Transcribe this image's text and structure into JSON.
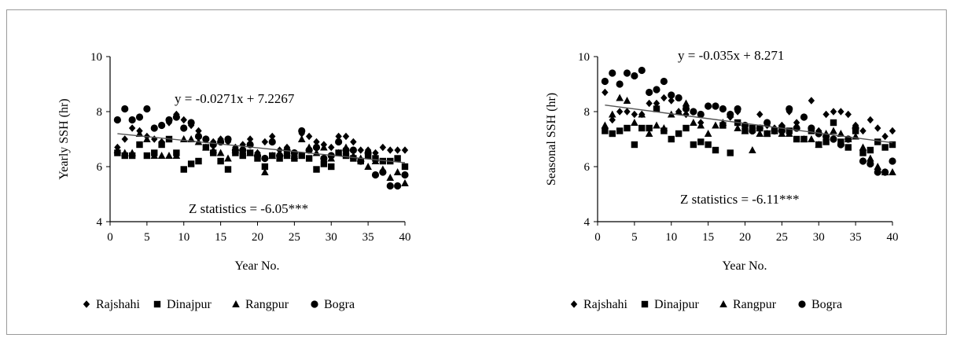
{
  "chart_data": [
    {
      "type": "scatter",
      "xlabel": "Year No.",
      "ylabel": "Yearly SSH (hr)",
      "xlim": [
        0,
        40
      ],
      "ylim": [
        4,
        10
      ],
      "xticks": [
        "0",
        "5",
        "10",
        "15",
        "20",
        "25",
        "30",
        "35",
        "40"
      ],
      "yticks": [
        "4",
        "6",
        "8",
        "10"
      ],
      "equation": "y = -0.0271x + 7.2267",
      "statistic": "Z statistics = -6.05***",
      "trend": {
        "slope": -0.0271,
        "intercept": 7.2267,
        "x_range": [
          1,
          40
        ]
      },
      "legend_position": "bottom",
      "grid": false,
      "series": [
        {
          "name": "Rajshahi",
          "marker": "diamond",
          "x": [
            1,
            2,
            3,
            4,
            5,
            6,
            7,
            8,
            9,
            10,
            11,
            12,
            13,
            14,
            15,
            16,
            17,
            18,
            19,
            20,
            21,
            22,
            23,
            24,
            25,
            26,
            27,
            28,
            29,
            30,
            31,
            32,
            33,
            34,
            35,
            36,
            37,
            38,
            39,
            40
          ],
          "y": [
            6.7,
            7.0,
            7.4,
            7.3,
            7.1,
            7.0,
            6.9,
            7.6,
            7.9,
            7.7,
            7.5,
            7.3,
            7.0,
            6.9,
            7.0,
            6.9,
            6.7,
            6.8,
            7.0,
            6.5,
            6.9,
            7.1,
            6.6,
            6.7,
            6.5,
            7.2,
            7.1,
            6.9,
            6.8,
            6.7,
            7.1,
            7.1,
            6.9,
            6.6,
            6.6,
            6.5,
            6.7,
            6.6,
            6.6,
            6.6
          ]
        },
        {
          "name": "Dinajpur",
          "marker": "square",
          "x": [
            1,
            2,
            3,
            4,
            5,
            6,
            7,
            8,
            9,
            10,
            11,
            12,
            13,
            14,
            15,
            16,
            17,
            18,
            19,
            20,
            21,
            22,
            23,
            24,
            25,
            26,
            27,
            28,
            29,
            30,
            31,
            32,
            33,
            34,
            35,
            36,
            37,
            38,
            39,
            40
          ],
          "y": [
            6.5,
            6.4,
            6.4,
            6.8,
            6.4,
            6.5,
            6.8,
            7.0,
            6.5,
            5.9,
            6.1,
            6.2,
            6.7,
            6.5,
            6.2,
            5.9,
            6.5,
            6.4,
            6.5,
            6.3,
            6.0,
            6.4,
            6.3,
            6.4,
            6.3,
            6.4,
            6.3,
            5.9,
            6.1,
            6.0,
            6.5,
            6.4,
            6.3,
            6.2,
            6.4,
            6.3,
            6.2,
            6.2,
            6.3,
            6.0
          ]
        },
        {
          "name": "Rangpur",
          "marker": "triangle",
          "x": [
            1,
            2,
            3,
            4,
            5,
            6,
            7,
            8,
            9,
            10,
            11,
            12,
            13,
            14,
            15,
            16,
            17,
            18,
            19,
            20,
            21,
            22,
            23,
            24,
            25,
            26,
            27,
            28,
            29,
            30,
            31,
            32,
            33,
            34,
            35,
            36,
            37,
            38,
            39,
            40
          ],
          "y": [
            6.6,
            6.5,
            6.5,
            7.2,
            7.0,
            6.4,
            6.4,
            6.4,
            6.4,
            7.0,
            7.0,
            6.9,
            6.7,
            6.6,
            6.5,
            6.3,
            6.6,
            6.7,
            6.5,
            6.5,
            5.8,
            6.4,
            6.5,
            6.5,
            6.4,
            7.0,
            6.7,
            6.5,
            6.7,
            6.3,
            6.5,
            6.7,
            6.4,
            6.3,
            6.0,
            6.2,
            5.9,
            5.6,
            5.8,
            5.4
          ]
        },
        {
          "name": "Bogra",
          "marker": "circle",
          "x": [
            1,
            2,
            3,
            4,
            5,
            6,
            7,
            8,
            9,
            10,
            11,
            12,
            13,
            14,
            15,
            16,
            17,
            18,
            19,
            20,
            21,
            22,
            23,
            24,
            25,
            26,
            27,
            28,
            29,
            30,
            31,
            32,
            33,
            34,
            35,
            36,
            37,
            38,
            39,
            40
          ],
          "y": [
            7.7,
            8.1,
            7.7,
            7.8,
            8.1,
            7.4,
            7.5,
            7.7,
            7.8,
            7.4,
            7.6,
            7.1,
            7.0,
            6.8,
            6.9,
            7.0,
            6.6,
            6.6,
            6.8,
            6.4,
            6.3,
            6.9,
            6.4,
            6.6,
            6.5,
            7.3,
            6.6,
            6.7,
            6.3,
            6.4,
            6.9,
            6.6,
            6.6,
            6.2,
            6.5,
            5.7,
            5.8,
            5.3,
            5.3,
            5.7
          ]
        }
      ]
    },
    {
      "type": "scatter",
      "xlabel": "Year No.",
      "ylabel": "Seasonal SSH (hr)",
      "xlim": [
        0,
        40
      ],
      "ylim": [
        4,
        10
      ],
      "xticks": [
        "0",
        "5",
        "10",
        "15",
        "20",
        "25",
        "30",
        "35",
        "40"
      ],
      "yticks": [
        "4",
        "6",
        "8",
        "10"
      ],
      "equation": "y = -0.035x + 8.271",
      "statistic": "Z statistics = -6.11***",
      "trend": {
        "slope": -0.035,
        "intercept": 8.271,
        "x_range": [
          1,
          40
        ]
      },
      "legend_position": "bottom",
      "grid": false,
      "series": [
        {
          "name": "Rajshahi",
          "marker": "diamond",
          "x": [
            1,
            2,
            3,
            4,
            5,
            6,
            7,
            8,
            9,
            10,
            11,
            12,
            13,
            14,
            15,
            16,
            17,
            18,
            19,
            20,
            21,
            22,
            23,
            24,
            25,
            26,
            27,
            28,
            29,
            30,
            31,
            32,
            33,
            34,
            35,
            36,
            37,
            38,
            39,
            40
          ],
          "y": [
            8.7,
            7.7,
            8.0,
            8.0,
            7.9,
            7.9,
            8.3,
            8.3,
            8.5,
            8.4,
            8.0,
            7.9,
            8.0,
            7.6,
            8.2,
            8.2,
            8.1,
            7.8,
            8.0,
            7.5,
            7.3,
            7.9,
            7.5,
            7.4,
            7.5,
            8.0,
            7.6,
            7.8,
            8.4,
            7.3,
            7.9,
            8.0,
            8.0,
            7.9,
            7.5,
            7.3,
            7.7,
            7.4,
            7.1,
            7.3
          ]
        },
        {
          "name": "Dinajpur",
          "marker": "square",
          "x": [
            1,
            2,
            3,
            4,
            5,
            6,
            7,
            8,
            9,
            10,
            11,
            12,
            13,
            14,
            15,
            16,
            17,
            18,
            19,
            20,
            21,
            22,
            23,
            24,
            25,
            26,
            27,
            28,
            29,
            30,
            31,
            32,
            33,
            34,
            35,
            36,
            37,
            38,
            39,
            40
          ],
          "y": [
            7.3,
            7.2,
            7.3,
            7.4,
            6.8,
            7.4,
            7.4,
            8.1,
            7.3,
            7.0,
            7.2,
            7.4,
            6.8,
            6.9,
            6.8,
            6.6,
            7.5,
            6.5,
            7.6,
            7.3,
            7.4,
            7.4,
            7.2,
            7.3,
            7.4,
            7.3,
            7.0,
            7.0,
            7.3,
            6.8,
            6.9,
            7.6,
            6.9,
            6.7,
            7.3,
            6.5,
            6.6,
            6.9,
            6.7,
            6.8
          ]
        },
        {
          "name": "Rangpur",
          "marker": "triangle",
          "x": [
            1,
            2,
            3,
            4,
            5,
            6,
            7,
            8,
            9,
            10,
            11,
            12,
            13,
            14,
            15,
            16,
            17,
            18,
            19,
            20,
            21,
            22,
            23,
            24,
            25,
            26,
            27,
            28,
            29,
            30,
            31,
            32,
            33,
            34,
            35,
            36,
            37,
            38,
            39,
            40
          ],
          "y": [
            7.5,
            7.9,
            8.5,
            8.4,
            7.6,
            7.9,
            7.2,
            7.5,
            7.4,
            7.9,
            8.0,
            8.3,
            7.6,
            7.5,
            7.2,
            7.5,
            7.6,
            7.9,
            7.4,
            7.3,
            6.6,
            7.2,
            7.2,
            7.3,
            7.2,
            7.2,
            7.5,
            7.0,
            7.0,
            6.8,
            7.2,
            7.3,
            7.2,
            7.0,
            7.1,
            6.7,
            6.3,
            6.0,
            5.8,
            5.8
          ]
        },
        {
          "name": "Bogra",
          "marker": "circle",
          "x": [
            1,
            2,
            3,
            4,
            5,
            6,
            7,
            8,
            9,
            10,
            11,
            12,
            13,
            14,
            15,
            16,
            17,
            18,
            19,
            20,
            21,
            22,
            23,
            24,
            25,
            26,
            27,
            28,
            29,
            30,
            31,
            32,
            33,
            34,
            35,
            36,
            37,
            38,
            39,
            40
          ],
          "y": [
            9.1,
            9.4,
            9.0,
            9.4,
            9.3,
            9.5,
            8.7,
            8.8,
            9.1,
            8.6,
            8.5,
            8.1,
            8.0,
            7.9,
            8.2,
            8.2,
            8.1,
            7.9,
            8.1,
            7.5,
            7.3,
            7.4,
            7.6,
            7.3,
            7.3,
            8.1,
            7.4,
            7.8,
            7.4,
            7.2,
            7.1,
            7.0,
            6.8,
            7.0,
            7.4,
            6.2,
            6.1,
            5.8,
            5.8,
            6.2
          ]
        }
      ]
    }
  ]
}
